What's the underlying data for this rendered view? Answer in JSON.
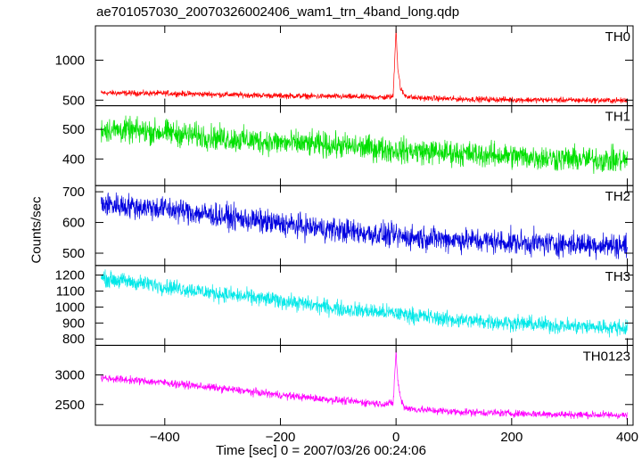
{
  "chart_data": {
    "type": "line",
    "title": "ae701057030_20070326002406_wam1_trn_4band_long.qdp",
    "xlabel": "Time [sec] 0 = 2007/03/26 00:24:06",
    "ylabel": "Counts/sec",
    "xlim": [
      -520,
      410
    ],
    "x_ticks": [
      -400,
      -200,
      0,
      200,
      400
    ],
    "x_tick_labels": [
      "−400",
      "−200",
      "0",
      "200",
      "400"
    ],
    "grid": false,
    "panels": [
      {
        "name": "TH0",
        "color": "#ff0000",
        "ylim": [
          430,
          1430
        ],
        "y_ticks": [
          500,
          1000
        ],
        "y_tick_labels": [
          "500",
          "1000"
        ],
        "series": [
          {
            "name": "TH0",
            "x": [
              -510,
              -400,
              -300,
              -200,
              -100,
              -20,
              -5,
              0,
              3,
              8,
              15,
              30,
              100,
              200,
              300,
              400
            ],
            "y": [
              590,
              585,
              570,
              555,
              545,
              535,
              545,
              1400,
              900,
              640,
              560,
              530,
              515,
              505,
              500,
              495
            ],
            "noise": 25
          }
        ]
      },
      {
        "name": "TH1",
        "color": "#00e000",
        "ylim": [
          310,
          580
        ],
        "y_ticks": [
          400,
          500
        ],
        "y_tick_labels": [
          "400",
          "500"
        ],
        "series": [
          {
            "name": "TH1",
            "x": [
              -510,
              -400,
              -300,
              -200,
              -100,
              0,
              100,
              200,
              300,
              400
            ],
            "y": [
              500,
              490,
              470,
              455,
              445,
              430,
              420,
              410,
              400,
              395
            ],
            "noise": 30
          }
        ]
      },
      {
        "name": "TH2",
        "color": "#0000e0",
        "ylim": [
          460,
          720
        ],
        "y_ticks": [
          500,
          600,
          700
        ],
        "y_tick_labels": [
          "500",
          "600",
          "700"
        ],
        "series": [
          {
            "name": "TH2",
            "x": [
              -510,
              -400,
              -300,
              -200,
              -100,
              0,
              100,
              200,
              300,
              400
            ],
            "y": [
              660,
              645,
              620,
              595,
              575,
              555,
              545,
              535,
              530,
              525
            ],
            "noise": 28
          }
        ]
      },
      {
        "name": "TH3",
        "color": "#00e8e8",
        "ylim": [
          760,
          1260
        ],
        "y_ticks": [
          800,
          900,
          1000,
          1100,
          1200
        ],
        "y_tick_labels": [
          "800",
          "900",
          "1000",
          "1100",
          "1200"
        ],
        "series": [
          {
            "name": "TH3",
            "x": [
              -510,
              -400,
              -300,
              -200,
              -100,
              0,
              100,
              200,
              300,
              400
            ],
            "y": [
              1180,
              1130,
              1080,
              1040,
              990,
              960,
              920,
              900,
              880,
              870
            ],
            "noise": 35
          }
        ]
      },
      {
        "name": "TH0123",
        "color": "#ff00ff",
        "ylim": [
          2150,
          3500
        ],
        "y_ticks": [
          2500,
          3000
        ],
        "y_tick_labels": [
          "2500",
          "3000"
        ],
        "series": [
          {
            "name": "TH0123",
            "x": [
              -510,
              -400,
              -300,
              -200,
              -100,
              -20,
              -5,
              0,
              3,
              8,
              15,
              30,
              100,
              200,
              300,
              400
            ],
            "y": [
              2950,
              2870,
              2770,
              2660,
              2570,
              2510,
              2520,
              3400,
              2900,
              2600,
              2450,
              2420,
              2380,
              2350,
              2330,
              2320
            ],
            "noise": 45
          }
        ]
      }
    ]
  }
}
